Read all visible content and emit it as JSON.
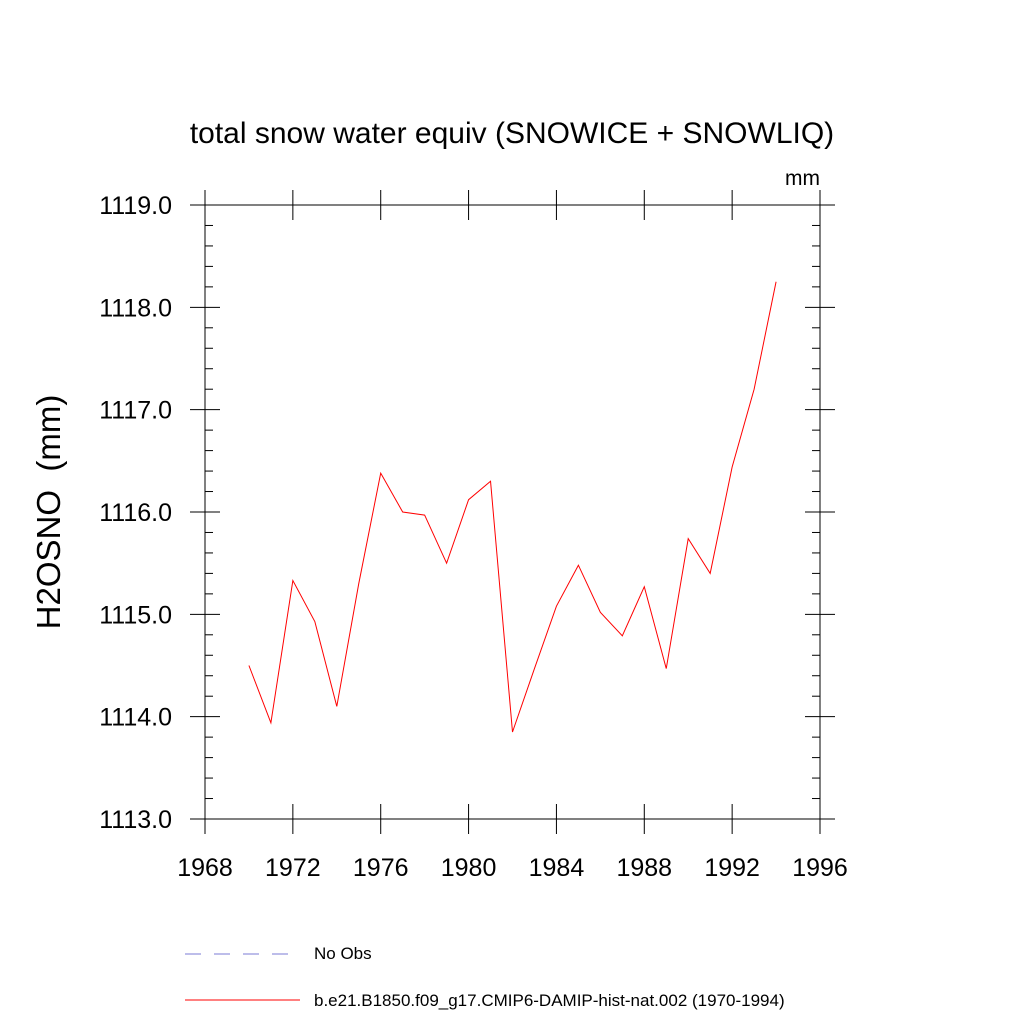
{
  "chart_data": {
    "type": "line",
    "title": "total snow water equiv (SNOWICE + SNOWLIQ)",
    "units": "mm",
    "xlabel": "",
    "ylabel": "H2OSNO  (mm)",
    "xlim": [
      1968,
      1996
    ],
    "ylim": [
      1113.0,
      1119.0
    ],
    "x_ticks": [
      1968,
      1972,
      1976,
      1980,
      1984,
      1988,
      1992,
      1996
    ],
    "x_tick_labels": [
      "1968",
      "1972",
      "1976",
      "1980",
      "1984",
      "1988",
      "1992",
      "1996"
    ],
    "y_ticks": [
      1113.0,
      1114.0,
      1115.0,
      1116.0,
      1117.0,
      1118.0,
      1119.0
    ],
    "y_tick_labels": [
      "1113.0",
      "1114.0",
      "1115.0",
      "1116.0",
      "1117.0",
      "1118.0",
      "1119.0"
    ],
    "grid": false,
    "legend_position": "bottom",
    "series": [
      {
        "name": "b.e21.B1850.f09_g17.CMIP6-DAMIP-hist-nat.002 (1970-1994)",
        "color": "#ff0000",
        "style": "solid",
        "x": [
          1970,
          1971,
          1972,
          1973,
          1974,
          1975,
          1976,
          1977,
          1978,
          1979,
          1980,
          1981,
          1982,
          1983,
          1984,
          1985,
          1986,
          1987,
          1988,
          1989,
          1990,
          1991,
          1992,
          1993,
          1994
        ],
        "y": [
          1114.5,
          1113.94,
          1115.33,
          1114.93,
          1114.1,
          1115.3,
          1116.38,
          1116.0,
          1115.97,
          1115.5,
          1116.12,
          1116.3,
          1113.85,
          1114.47,
          1115.08,
          1115.48,
          1115.02,
          1114.79,
          1115.27,
          1114.47,
          1115.74,
          1115.4,
          1116.44,
          1117.2,
          1118.25
        ]
      }
    ],
    "legend": [
      {
        "label": "No Obs",
        "color": "#7b7bd4",
        "style": "dashed"
      },
      {
        "label": "b.e21.B1850.f09_g17.CMIP6-DAMIP-hist-nat.002 (1970-1994)",
        "color": "#ff0000",
        "style": "solid"
      }
    ]
  }
}
